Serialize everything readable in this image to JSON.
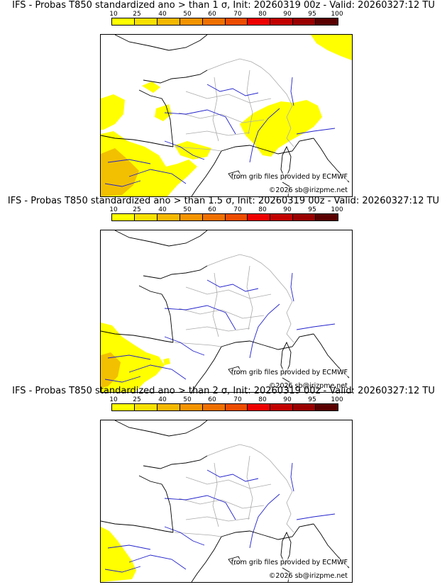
{
  "colors": {
    "scale": [
      "#ffff00",
      "#f8e000",
      "#f5b800",
      "#f39400",
      "#ef7000",
      "#ec4c00",
      "#ee0000",
      "#c20000",
      "#9a0000",
      "#5a0000"
    ],
    "coast": "#000000",
    "rivers": "#2222cc",
    "borders": "#aaaaaa",
    "prob_low": "#ffff00",
    "prob_mid": "#f2c000"
  },
  "scale_ticks": [
    "10",
    "25",
    "40",
    "50",
    "60",
    "70",
    "80",
    "90",
    "95",
    "100"
  ],
  "panels": [
    {
      "title": "IFS - Probas T850  standardized ano > than 1 σ, Init: 20260319 00z - Valid: 20260327:12 TU",
      "source": "from grib files provided by ECMWF",
      "copyright": "©2026 sb@irizpme.net"
    },
    {
      "title": "IFS - Probas T850  standardized ano > than 1.5 σ, Init: 20260319 00z - Valid: 20260327:12 TU",
      "source": "from grib files provided by ECMWF",
      "copyright": "©2026 sb@irizpme.net"
    },
    {
      "title": "IFS - Probas T850  standardized ano > than 2 σ, Init: 20260319 00z - Valid: 20260327:12 TU",
      "source": "from grib files provided by ECMWF",
      "copyright": "©2026 sb@irizpme.net"
    }
  ]
}
